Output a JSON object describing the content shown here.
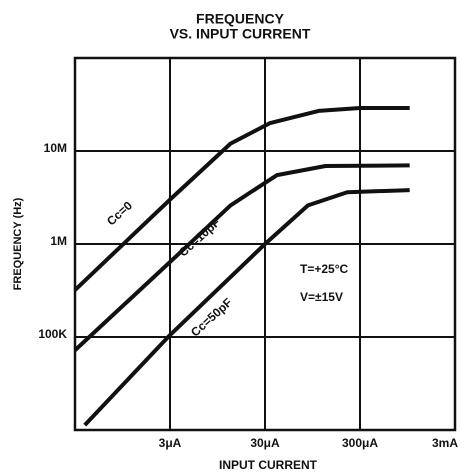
{
  "chart_data": {
    "type": "line",
    "title": [
      "FREQUENCY",
      "VS. INPUT CURRENT"
    ],
    "xlabel": "INPUT CURRENT",
    "ylabel": "FREQUENCY (Hz)",
    "xscale": "log",
    "yscale": "log",
    "grid": true,
    "color": "#111",
    "xlim": [
      3e-07,
      0.003
    ],
    "ylim": [
      10000.0,
      100000000.0
    ],
    "xticks": [
      {
        "value": 3e-06,
        "label": "3μA"
      },
      {
        "value": 3e-05,
        "label": "30μA"
      },
      {
        "value": 0.0003,
        "label": "300μA"
      },
      {
        "value": 0.003,
        "label": "3mA"
      }
    ],
    "yticks": [
      {
        "value": 100000.0,
        "label": "100K"
      },
      {
        "value": 1000000.0,
        "label": "1M"
      },
      {
        "value": 10000000.0,
        "label": "10M"
      }
    ],
    "series": [
      {
        "name": "Cc=0",
        "x": [
          3e-07,
          3e-06,
          1.3e-05,
          3.4e-05,
          0.00011,
          0.0003,
          0.001
        ],
        "values": [
          320000.0,
          3000000.0,
          12000000.0,
          20000000.0,
          27000000.0,
          29000000.0,
          29000000.0
        ]
      },
      {
        "name": "Cc=10pF",
        "x": [
          3e-07,
          3e-06,
          1.3e-05,
          4e-05,
          0.00013,
          0.001
        ],
        "values": [
          72000.0,
          640000.0,
          2600000.0,
          5500000.0,
          6900000.0,
          7000000.0
        ]
      },
      {
        "name": "Cc=50pF",
        "x": [
          3.8e-07,
          3e-06,
          3e-05,
          8.5e-05,
          0.00022,
          0.001
        ],
        "values": [
          11300.0,
          105000.0,
          1000000.0,
          2600000.0,
          3600000.0,
          3800000.0
        ]
      }
    ],
    "annotations": [
      "T=+25°C",
      "V=±15V"
    ]
  }
}
